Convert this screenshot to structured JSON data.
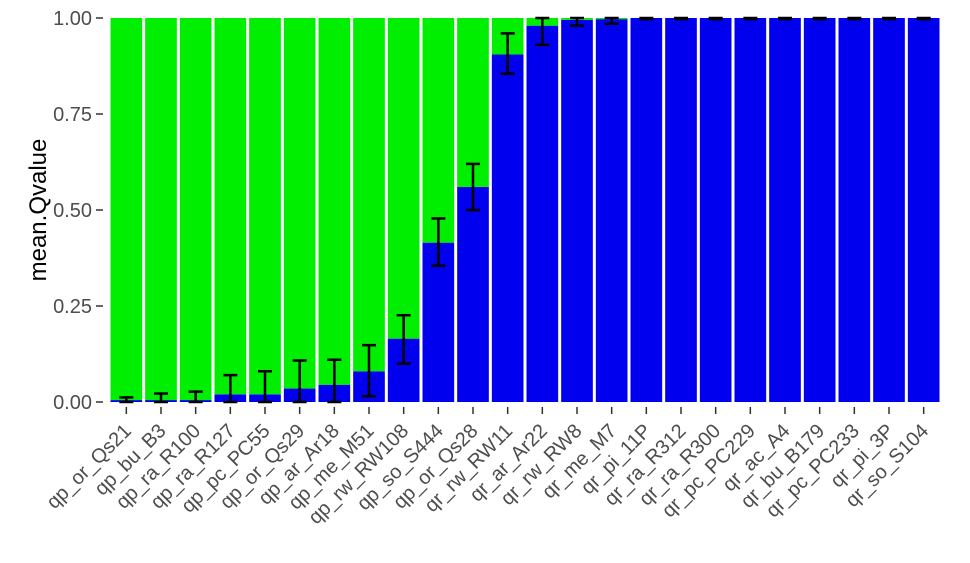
{
  "chart_data": {
    "type": "bar",
    "stacked": true,
    "ylabel": "mean.Qvalue",
    "xlabel": "",
    "ylim": [
      0,
      1
    ],
    "yticks": [
      "0.00",
      "0.25",
      "0.50",
      "0.75",
      "1.00"
    ],
    "ytick_values": [
      0,
      0.25,
      0.5,
      0.75,
      1.0
    ],
    "grid": false,
    "legend": "none",
    "categories": [
      "qp_or_Qs21",
      "qp_bu_B3",
      "qp_ra_R100",
      "qp_ra_R127",
      "qp_pc_PC55",
      "qp_or_Qs29",
      "qp_ar_Ar18",
      "qp_me_M51",
      "qp_rw_RW108",
      "qp_so_S444",
      "qp_or_Qs28",
      "qr_rw_RW11",
      "qr_ar_Ar22",
      "qr_rw_RW8",
      "qr_me_M7",
      "qr_pi_11P",
      "qr_ra_R312",
      "qr_ra_R300",
      "qr_pc_PC229",
      "qr_ac_A4",
      "qr_bu_B179",
      "qr_pc_PC233",
      "qr_pi_3P",
      "qr_so_S104"
    ],
    "series": [
      {
        "color": "#0000ee",
        "values": [
          0.005,
          0.005,
          0.005,
          0.02,
          0.02,
          0.035,
          0.045,
          0.08,
          0.165,
          0.415,
          0.56,
          0.905,
          0.98,
          0.995,
          0.997,
          1.0,
          1.0,
          1.0,
          1.0,
          1.0,
          1.0,
          1.0,
          1.0,
          1.0
        ]
      },
      {
        "color": "#00ee00",
        "values": [
          0.995,
          0.995,
          0.995,
          0.98,
          0.98,
          0.965,
          0.955,
          0.92,
          0.835,
          0.585,
          0.44,
          0.095,
          0.02,
          0.005,
          0.003,
          0.0,
          0.0,
          0.0,
          0.0,
          0.0,
          0.0,
          0.0,
          0.0,
          0.0
        ]
      }
    ],
    "error_bars": {
      "series_index": 0,
      "lower": [
        0.0,
        0.0,
        0.0,
        0.0,
        0.0,
        0.0,
        0.0,
        0.015,
        0.1,
        0.355,
        0.5,
        0.855,
        0.93,
        0.98,
        0.985,
        0.997,
        0.997,
        0.997,
        0.997,
        0.997,
        0.997,
        0.997,
        0.997,
        0.997
      ],
      "upper": [
        0.012,
        0.022,
        0.027,
        0.07,
        0.08,
        0.108,
        0.11,
        0.148,
        0.226,
        0.478,
        0.62,
        0.96,
        1.0,
        1.0,
        1.0,
        1.0,
        1.0,
        1.0,
        1.0,
        1.0,
        1.0,
        1.0,
        1.0,
        1.0
      ]
    }
  }
}
